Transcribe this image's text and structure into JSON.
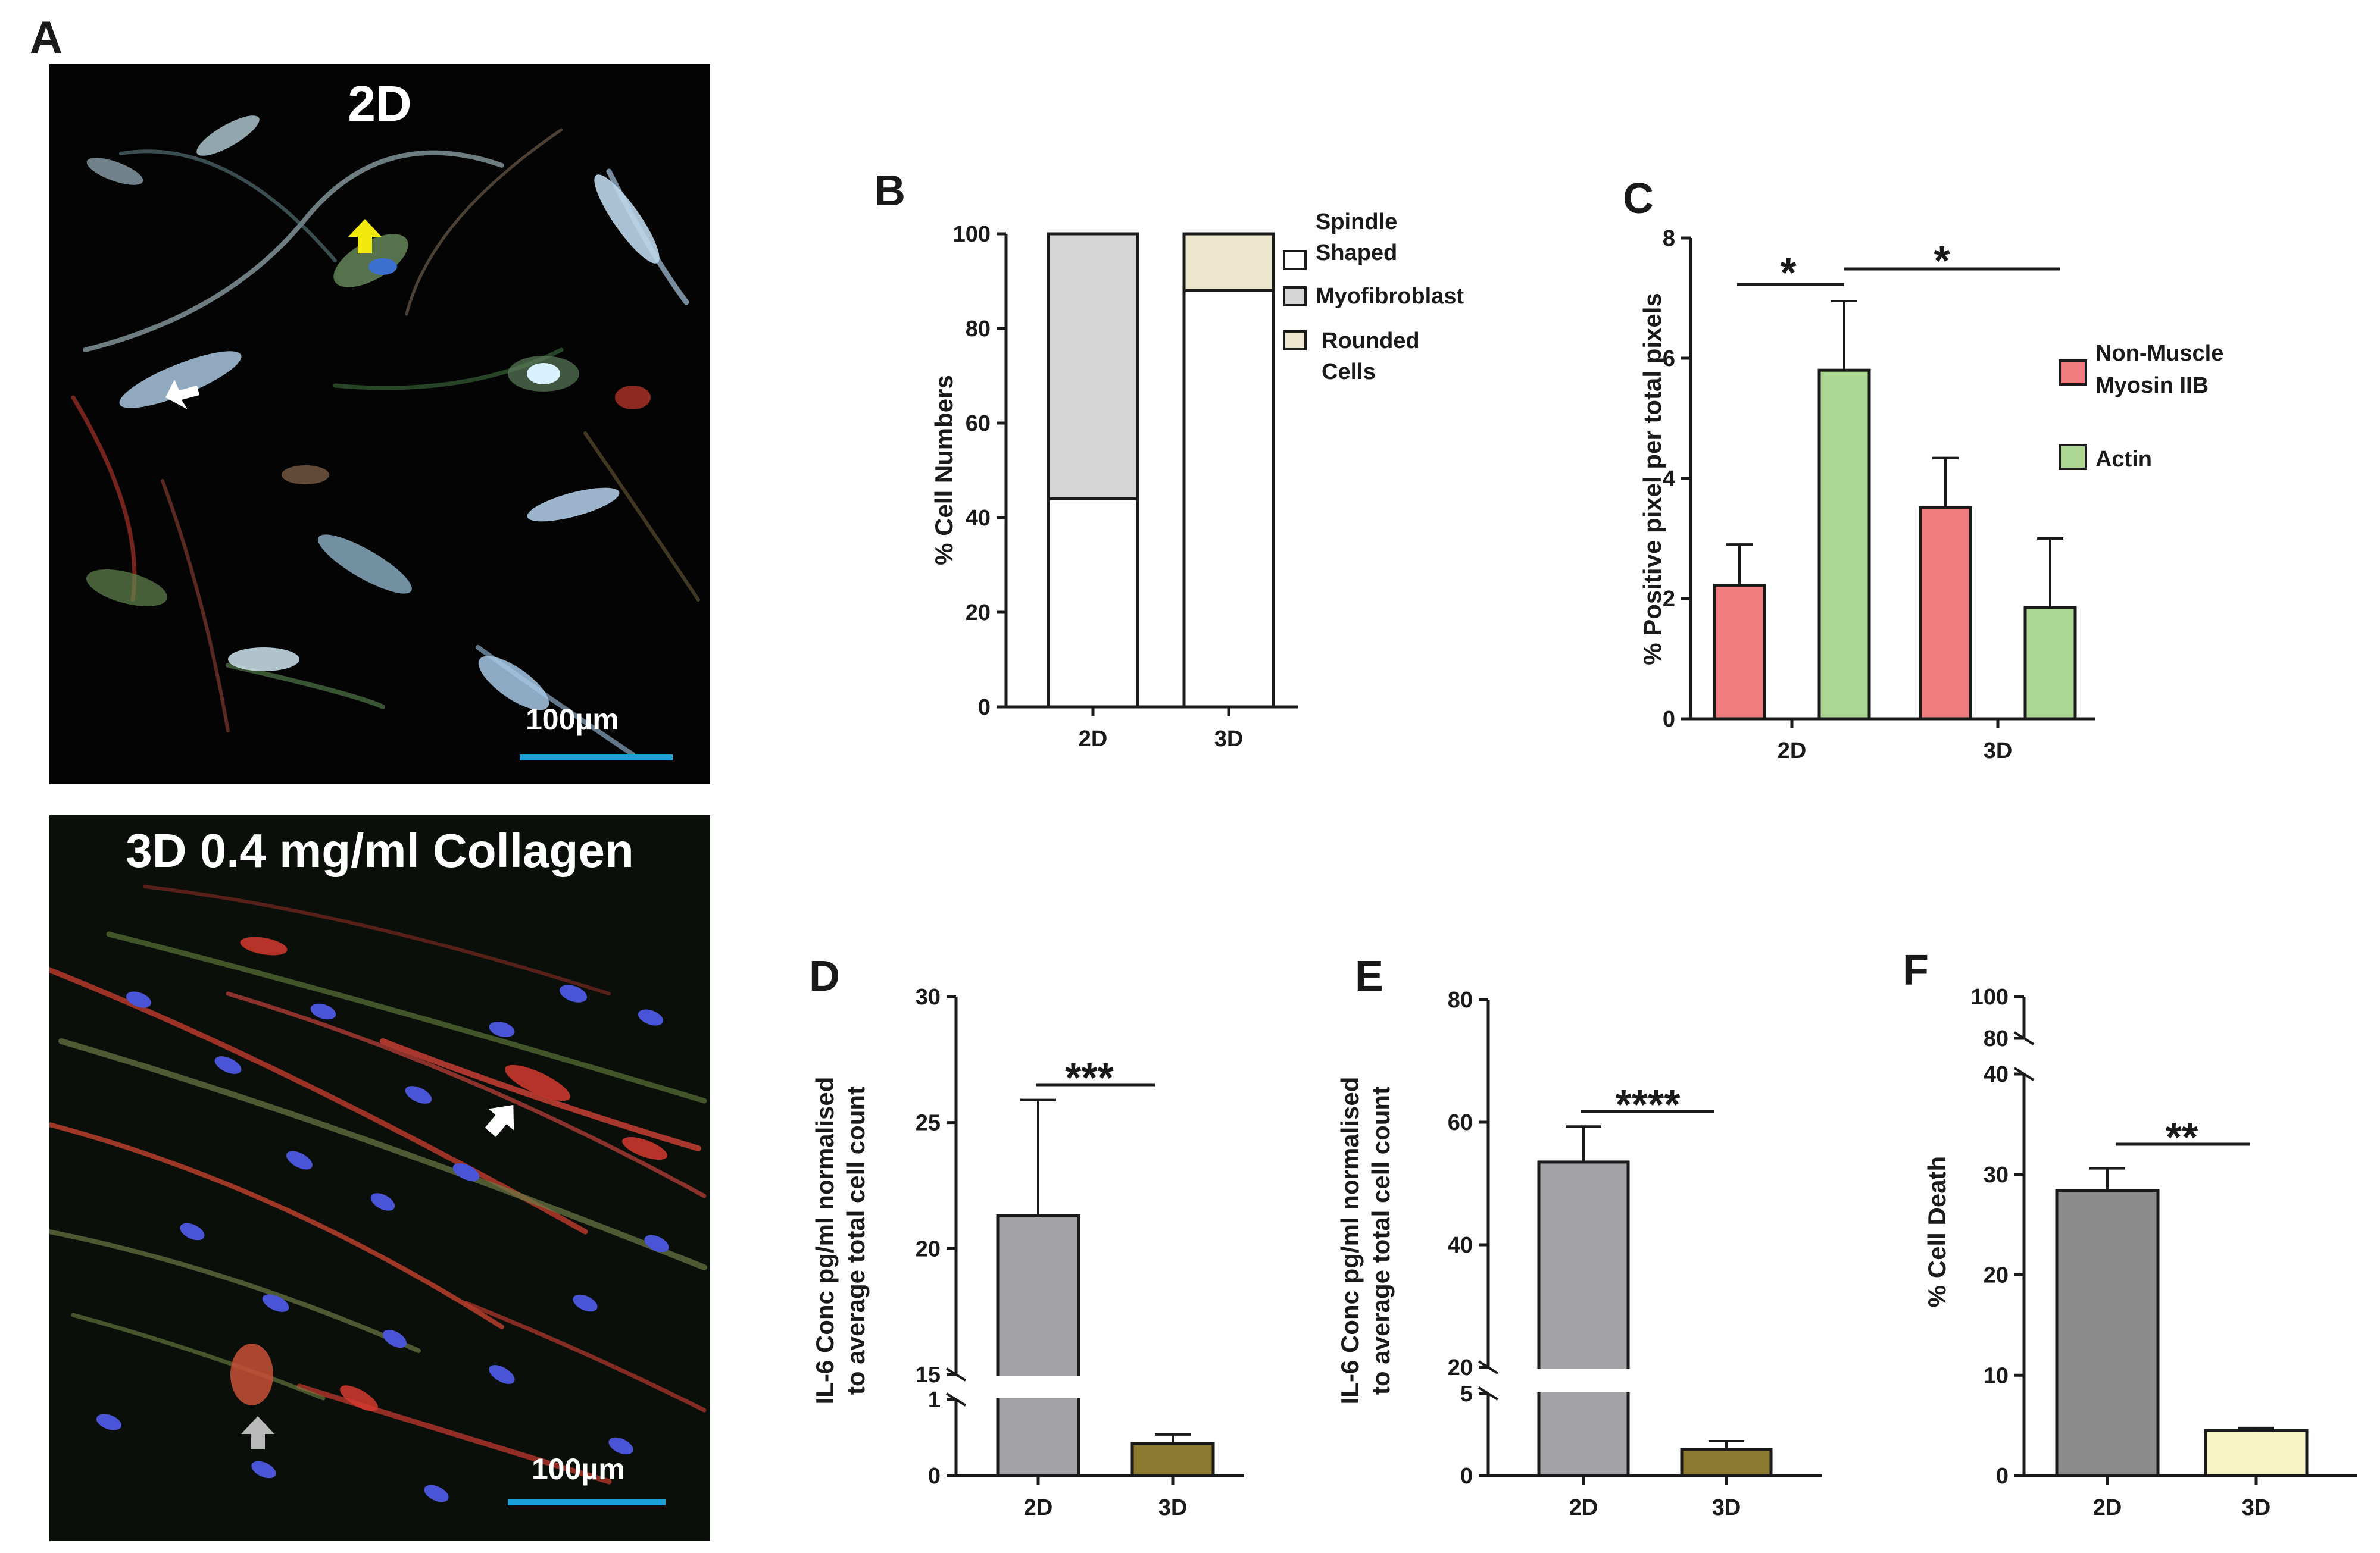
{
  "panel_labels": {
    "a": "A",
    "b": "B",
    "c": "C",
    "d": "D",
    "e": "E",
    "f": "F"
  },
  "micrographs": {
    "top": {
      "title": "2D",
      "scale": "100µm"
    },
    "bottom": {
      "title": "3D 0.4 mg/ml Collagen",
      "scale": "100µm"
    }
  },
  "colors": {
    "white_bar": "#ffffff",
    "myofibroblast": "#d5d5d5",
    "rounded": "#ebe6cd",
    "nmm": "#f07c80",
    "actin": "#acd793",
    "grey_bar": "#a3a3a7",
    "olive_bar": "#8c7a30",
    "dark_grey_bar": "#8a8a8a",
    "pale_yellow_bar": "#f6f4c4",
    "scale_bar": "#1ba1d8"
  },
  "chart_data": [
    {
      "id": "B",
      "type": "bar",
      "stacked": true,
      "categories": [
        "2D",
        "3D"
      ],
      "ylabel": "% Cell Numbers",
      "ylim": [
        0,
        100
      ],
      "yticks": [
        "0",
        "20",
        "40",
        "60",
        "80",
        "100"
      ],
      "series": [
        {
          "name": "Spindle Shaped",
          "values": [
            44,
            88
          ]
        },
        {
          "name": "Myofibroblast",
          "values": [
            56,
            0
          ]
        },
        {
          "name": "Rounded Cells",
          "values": [
            0,
            12
          ]
        }
      ],
      "legend": [
        "Spindle",
        "Shaped",
        "Myofibroblast",
        "Rounded",
        "Cells"
      ]
    },
    {
      "id": "C",
      "type": "bar",
      "categories": [
        "2D",
        "3D"
      ],
      "ylabel": "% Positive pixel per total pixels",
      "ylim": [
        0,
        8
      ],
      "yticks": [
        "0",
        "2",
        "4",
        "6",
        "8"
      ],
      "series": [
        {
          "name": "Non-Muscle Myosin IIB",
          "values": [
            2.22,
            3.52
          ],
          "errors": [
            0.68,
            0.82
          ]
        },
        {
          "name": "Actin",
          "values": [
            5.8,
            1.85
          ],
          "errors": [
            1.15,
            1.15
          ]
        }
      ],
      "legend": [
        "Non-Muscle",
        "Myosin IIB",
        "Actin"
      ],
      "significance": [
        "*",
        "*"
      ]
    },
    {
      "id": "D",
      "type": "bar",
      "categories": [
        "2D",
        "3D"
      ],
      "ylabel_lines": [
        "IL-6 Conc pg/ml normalised",
        "to average total cell count"
      ],
      "axis_break": true,
      "lower_ticks": [
        "0",
        "1"
      ],
      "upper_ticks": [
        "15",
        "20",
        "25",
        "30"
      ],
      "values": [
        21.3,
        0.42
      ],
      "errors": [
        4.6,
        0.12
      ],
      "significance": "***"
    },
    {
      "id": "E",
      "type": "bar",
      "categories": [
        "2D",
        "3D"
      ],
      "ylabel_lines": [
        "IL-6 Conc pg/ml normalised",
        "to average total cell count"
      ],
      "axis_break": true,
      "lower_ticks": [
        "0",
        "5"
      ],
      "upper_ticks": [
        "20",
        "40",
        "60",
        "80"
      ],
      "values": [
        53.5,
        1.6
      ],
      "errors": [
        5.8,
        0.5
      ],
      "significance": "****"
    },
    {
      "id": "F",
      "type": "bar",
      "categories": [
        "2D",
        "3D"
      ],
      "ylabel": "% Cell Death",
      "axis_break": true,
      "lower_ticks": [
        "0",
        "10",
        "20",
        "30",
        "40"
      ],
      "upper_ticks": [
        "80",
        "100"
      ],
      "values": [
        28.4,
        4.5
      ],
      "errors": [
        2.2,
        0.25
      ],
      "significance": "**"
    }
  ]
}
